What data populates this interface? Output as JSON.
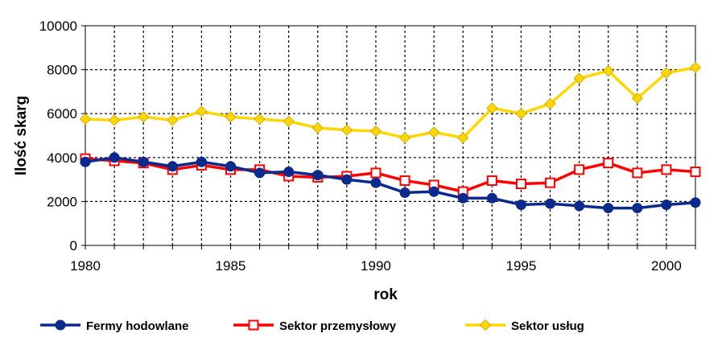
{
  "chart_data": {
    "type": "line",
    "xlabel": "rok",
    "ylabel": "Ilość skarg",
    "xlim": [
      1980,
      2001
    ],
    "ylim": [
      0,
      10000
    ],
    "x_ticks": [
      1980,
      1985,
      1990,
      1995,
      2000
    ],
    "y_ticks": [
      0,
      2000,
      4000,
      6000,
      8000,
      10000
    ],
    "grid": true,
    "legend_position": "bottom",
    "x": [
      1980,
      1981,
      1982,
      1983,
      1984,
      1985,
      1986,
      1987,
      1988,
      1989,
      1990,
      1991,
      1992,
      1993,
      1994,
      1995,
      1996,
      1997,
      1998,
      1999,
      2000,
      2001
    ],
    "series": [
      {
        "name": "Fermy hodowlane",
        "color": "#0a2a8c",
        "marker": "filled-circle",
        "values": [
          3800,
          4000,
          3800,
          3600,
          3800,
          3600,
          3300,
          3350,
          3200,
          3000,
          2850,
          2400,
          2450,
          2150,
          2150,
          1850,
          1900,
          1800,
          1700,
          1700,
          1850,
          1950
        ]
      },
      {
        "name": "Sektor przemysłowy",
        "color": "#ff0000",
        "marker": "open-square",
        "values": [
          3950,
          3850,
          3750,
          3450,
          3650,
          3450,
          3450,
          3150,
          3100,
          3150,
          3300,
          2950,
          2750,
          2450,
          2950,
          2800,
          2850,
          3450,
          3750,
          3300,
          3450,
          3350
        ]
      },
      {
        "name": "Sektor usług",
        "color": "#ffd700",
        "marker": "diamond",
        "values": [
          5750,
          5700,
          5850,
          5700,
          6100,
          5850,
          5750,
          5650,
          5350,
          5250,
          5200,
          4900,
          5150,
          4900,
          6250,
          6000,
          6450,
          7600,
          7950,
          6700,
          7850,
          8100
        ]
      }
    ]
  }
}
